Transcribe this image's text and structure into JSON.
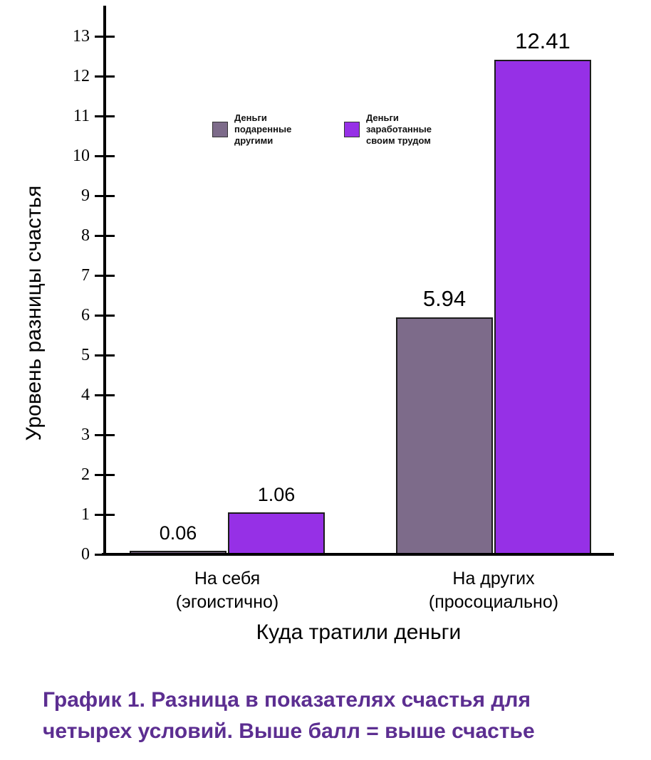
{
  "chart_data": {
    "type": "bar",
    "title": "",
    "xlabel": "Куда тратили деньги",
    "ylabel": "Уровень разницы счастья",
    "ylim": [
      0,
      13
    ],
    "yticks": [
      0,
      1,
      2,
      3,
      4,
      5,
      6,
      7,
      8,
      9,
      10,
      11,
      12,
      13
    ],
    "grid": false,
    "legend_position": "inside-top",
    "axis_color": "#000000",
    "categories": [
      {
        "line1": "На себя",
        "line2": "(эгоистично)"
      },
      {
        "line1": "На других",
        "line2": "(просоциально)"
      }
    ],
    "series": [
      {
        "key": "money-gifted-by-others",
        "name": "Деньги подаренные другими",
        "color": "#7d6b8a",
        "values": [
          0.06,
          5.94
        ],
        "labels": [
          "0.06",
          "5.94"
        ]
      },
      {
        "key": "money-earned-by-own-work",
        "name": "Деньги заработанные своим трудом",
        "color": "#9630e6",
        "values": [
          1.06,
          12.41
        ],
        "labels": [
          "1.06",
          "12.41"
        ]
      }
    ]
  },
  "caption": {
    "line1": "График 1. Разница в показателях счастья для",
    "line2": "четырех условий. Выше балл = выше счастье",
    "color": "#5c2e91"
  }
}
